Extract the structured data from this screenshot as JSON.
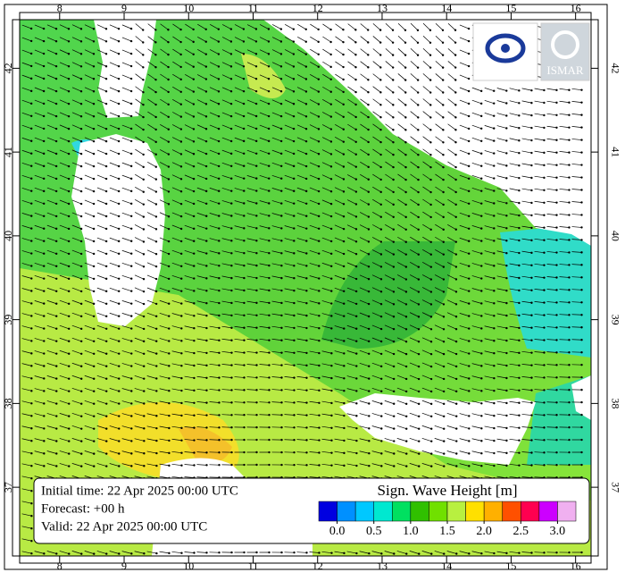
{
  "map": {
    "lon_ticks": [
      8,
      9,
      10,
      11,
      12,
      13,
      14,
      15,
      16
    ],
    "lat_ticks": [
      37,
      38,
      39,
      40,
      41,
      42
    ],
    "lonlim": [
      7.38,
      16.24
    ],
    "latlim": [
      36.18,
      42.58
    ],
    "logo_text": "ISMAR"
  },
  "info": {
    "initial": "Initial time: 22 Apr 2025 00:00 UTC",
    "forecast": "Forecast: +00 h",
    "valid": "Valid: 22 Apr 2025 00:00 UTC"
  },
  "colorbar": {
    "title": "Sign. Wave Height [m]",
    "min": -0.25,
    "max": 3.25,
    "colors": [
      "#0000e0",
      "#0090ff",
      "#00c8ff",
      "#00e8d0",
      "#00e060",
      "#30c000",
      "#70e000",
      "#b8f040",
      "#ffe000",
      "#ffb000",
      "#ff5000",
      "#ff0050",
      "#cc00ff",
      "#f0b0f0"
    ],
    "ticks": [
      {
        "value": 0,
        "label": "0.0"
      },
      0.5,
      {
        "value": 1,
        "label": "1.0"
      },
      1.5,
      {
        "value": 2,
        "label": "2.0"
      },
      2.5,
      {
        "value": 3,
        "label": "3.0"
      }
    ]
  }
}
